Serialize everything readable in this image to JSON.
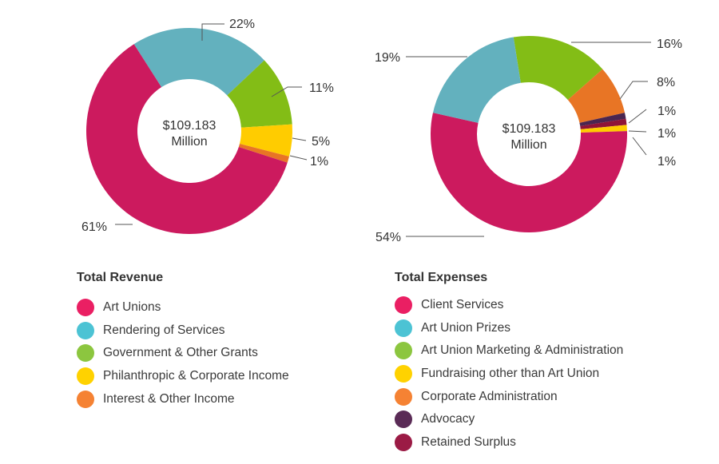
{
  "colors": {
    "magenta": "#cc1a5e",
    "teal": "#63b1be",
    "green": "#83bd16",
    "yellow": "#ffcc00",
    "orange": "#e87525",
    "purple": "#4a2650",
    "maroon": "#8f1437",
    "label_text": "#333333",
    "leader_line": "#555555"
  },
  "chart_data": [
    {
      "type": "pie",
      "variant": "donut",
      "title": "Total Revenue",
      "center_label": [
        "$109.183",
        "Million"
      ],
      "series": [
        {
          "name": "Art Unions",
          "value": 61,
          "label": "61%",
          "color": "#cc1a5e"
        },
        {
          "name": "Rendering of Services",
          "value": 22,
          "label": "22%",
          "color": "#63b1be"
        },
        {
          "name": "Government & Other Grants",
          "value": 11,
          "label": "11%",
          "color": "#83bd16"
        },
        {
          "name": "Philanthropic & Corporate Income",
          "value": 5,
          "label": "5%",
          "color": "#ffcc00"
        },
        {
          "name": "Interest & Other Income",
          "value": 1,
          "label": "1%",
          "color": "#e87525"
        }
      ]
    },
    {
      "type": "pie",
      "variant": "donut",
      "title": "Total Expenses",
      "center_label": [
        "$109.183",
        "Million"
      ],
      "series": [
        {
          "name": "Client Services",
          "value": 54,
          "label": "54%",
          "color": "#cc1a5e"
        },
        {
          "name": "Art Union Prizes",
          "value": 19,
          "label": "19%",
          "color": "#63b1be"
        },
        {
          "name": "Art Union Marketing & Administration",
          "value": 16,
          "label": "16%",
          "color": "#83bd16"
        },
        {
          "name": "Fundraising other than Art Union",
          "value": 1,
          "label": "1%",
          "color": "#ffcc00"
        },
        {
          "name": "Corporate Administration",
          "value": 8,
          "label": "8%",
          "color": "#e87525"
        },
        {
          "name": "Advocacy",
          "value": 1,
          "label": "1%",
          "color": "#4a2650"
        },
        {
          "name": "Retained Surplus",
          "value": 1,
          "label": "1%",
          "color": "#8f1437"
        }
      ]
    }
  ],
  "legends": [
    {
      "title": "Total Revenue",
      "items": [
        "Art Unions",
        "Rendering of Services",
        "Government & Other Grants",
        "Philanthropic & Corporate Income",
        "Interest & Other Income"
      ]
    },
    {
      "title": "Total Expenses",
      "items": [
        "Client Services",
        "Art Union Prizes",
        "Art Union Marketing & Administration",
        "Fundraising other than Art Union",
        "Corporate Administration",
        "Advocacy",
        "Retained Surplus"
      ]
    }
  ]
}
